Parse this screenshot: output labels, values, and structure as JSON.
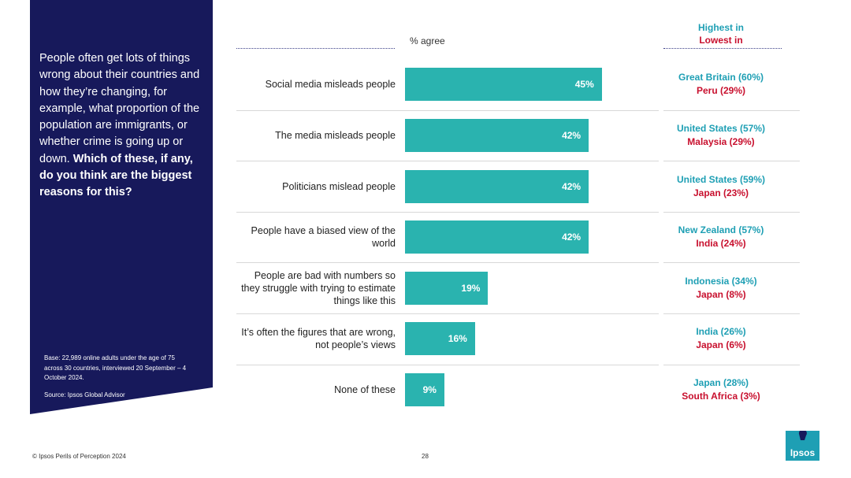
{
  "panel": {
    "question_plain": "People often get lots of things wrong about their countries and how they’re changing, for example, what proportion of the population are immigrants, or whether crime is going up or down. ",
    "question_bold": "Which of these, if any, do you think are the biggest reasons for this?",
    "base": "Base: 22,989 online adults under the age of 75 across 30 countries, interviewed 20 September – 4 October 2024.",
    "source": "Source: Ipsos Global Advisor"
  },
  "header": {
    "axis_label": "% agree",
    "highest_label": "Highest in",
    "lowest_label": "Lowest in",
    "highest_color": "#1e9fb4",
    "lowest_color": "#c8102e"
  },
  "chart_data": {
    "type": "bar",
    "orientation": "horizontal",
    "ylabel": "% agree",
    "bar_color": "#2ab3af",
    "categories": [
      "Social media misleads people",
      "The media misleads people",
      "Politicians mislead people",
      "People have a biased view of the world",
      "People are bad with numbers so they struggle with trying to estimate things like this",
      "It’s often the figures that are wrong, not people’s views",
      "None of these"
    ],
    "values": [
      45,
      42,
      42,
      42,
      19,
      16,
      9
    ],
    "value_labels": [
      "45%",
      "42%",
      "42%",
      "42%",
      "19%",
      "16%",
      "9%"
    ]
  },
  "rows": [
    {
      "label": "Social media misleads people",
      "highest": "Great Britain (60%)",
      "lowest": "Peru (29%)"
    },
    {
      "label": "The media misleads people",
      "highest": "United States (57%)",
      "lowest": "Malaysia (29%)"
    },
    {
      "label": "Politicians mislead people",
      "highest": "United States (59%)",
      "lowest": "Japan (23%)"
    },
    {
      "label": "People have a biased view of the world",
      "highest": "New Zealand (57%)",
      "lowest": "India (24%)"
    },
    {
      "label": "People are bad with numbers so they struggle with trying to estimate things like this",
      "highest": "Indonesia (34%)",
      "lowest": "Japan (8%)"
    },
    {
      "label": "It’s often the figures that are wrong, not people’s views",
      "highest": "India (26%)",
      "lowest": "Japan (6%)"
    },
    {
      "label": "None of these",
      "highest": "Japan (28%)",
      "lowest": "South Africa (3%)"
    }
  ],
  "footer": {
    "copyright": "© Ipsos Perils of Perception 2024",
    "page_number": "28",
    "logo_text": "Ipsos",
    "logo_color": "#1e9fb4"
  }
}
